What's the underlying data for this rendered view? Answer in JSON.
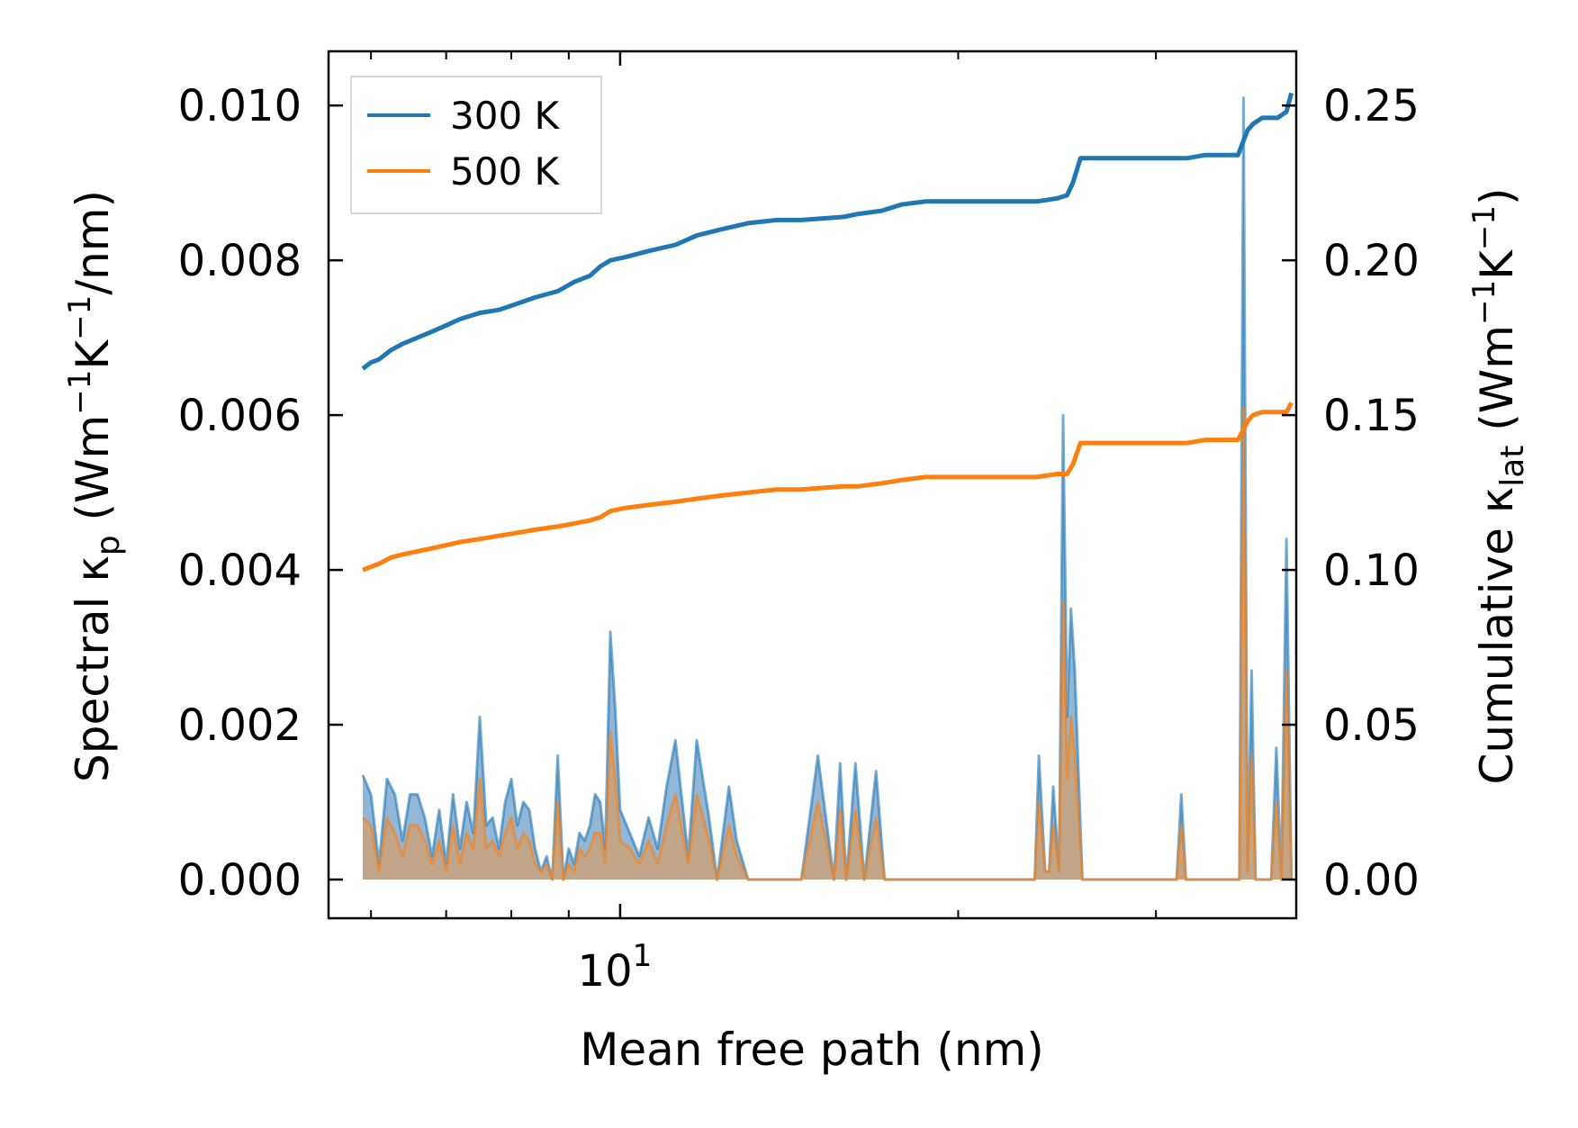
{
  "chart_data": {
    "type": "line",
    "xlabel": "Mean free path (nm)",
    "x_scale": "log",
    "xlim": [
      5.5,
      40
    ],
    "x_major_ticks": [
      {
        "value": 10,
        "base": "10",
        "exp": "1"
      }
    ],
    "x_minor_ticks": [
      6,
      7,
      8,
      9,
      20,
      30
    ],
    "y_left": {
      "label": {
        "pre": "Spectral κ",
        "sub": "p",
        "mid": " (Wm",
        "sup1": "−1",
        "mid2": "K",
        "sup2": "−1",
        "post": "/nm)"
      },
      "lim": [
        -0.0005,
        0.0107
      ],
      "ticks": [
        0.0,
        0.002,
        0.004,
        0.006,
        0.008,
        0.01
      ],
      "tick_labels": [
        "0.000",
        "0.002",
        "0.004",
        "0.006",
        "0.008",
        "0.010"
      ]
    },
    "y_right": {
      "label": {
        "pre": "Cumulative κ",
        "sub": "lat",
        "mid": " (Wm",
        "sup1": "−1",
        "mid2": "K",
        "sup2": "−1",
        "post": ")"
      },
      "lim": [
        -0.0125,
        0.2675
      ],
      "ticks": [
        0.0,
        0.05,
        0.1,
        0.15,
        0.2,
        0.25
      ],
      "tick_labels": [
        "0.00",
        "0.05",
        "0.10",
        "0.15",
        "0.20",
        "0.25"
      ]
    },
    "legend": {
      "position": "top-left"
    },
    "series": [
      {
        "name": "300 K",
        "color": "#1f77b4",
        "cumulative": {
          "x": [
            5.9,
            6.0,
            6.1,
            6.25,
            6.4,
            6.6,
            6.8,
            7.0,
            7.2,
            7.5,
            7.8,
            8.1,
            8.4,
            8.8,
            9.1,
            9.4,
            9.6,
            9.8,
            10.1,
            10.6,
            11.2,
            11.7,
            12.3,
            13.0,
            13.8,
            14.5,
            15.8,
            16.3,
            17.1,
            17.8,
            18.7,
            20.0,
            21.5,
            23.5,
            24.5,
            25.0,
            25.3,
            25.7,
            27.3,
            28.5,
            32.0,
            33.2,
            35.5,
            36.2,
            36.6,
            37.3,
            38.5,
            39.2,
            39.6
          ],
          "y": [
            0.165,
            0.167,
            0.168,
            0.171,
            0.173,
            0.175,
            0.177,
            0.179,
            0.181,
            0.183,
            0.184,
            0.186,
            0.188,
            0.19,
            0.193,
            0.195,
            0.198,
            0.2,
            0.201,
            0.203,
            0.205,
            0.208,
            0.21,
            0.212,
            0.213,
            0.213,
            0.214,
            0.215,
            0.216,
            0.218,
            0.219,
            0.219,
            0.219,
            0.219,
            0.22,
            0.221,
            0.225,
            0.233,
            0.233,
            0.233,
            0.233,
            0.234,
            0.234,
            0.242,
            0.244,
            0.246,
            0.246,
            0.248,
            0.254
          ]
        },
        "spectral": {
          "x": [
            5.9,
            6.0,
            6.1,
            6.2,
            6.3,
            6.4,
            6.5,
            6.6,
            6.7,
            6.8,
            6.9,
            7.0,
            7.1,
            7.2,
            7.3,
            7.4,
            7.5,
            7.6,
            7.7,
            7.8,
            7.9,
            8.0,
            8.1,
            8.2,
            8.3,
            8.4,
            8.5,
            8.6,
            8.7,
            8.8,
            8.9,
            9.0,
            9.1,
            9.2,
            9.3,
            9.4,
            9.5,
            9.6,
            9.7,
            9.8,
            9.9,
            10.0,
            10.2,
            10.4,
            10.6,
            10.8,
            11.0,
            11.2,
            11.5,
            11.7,
            12.0,
            12.2,
            12.5,
            12.7,
            13.0,
            13.2,
            13.5,
            13.8,
            14.0,
            14.5,
            15.0,
            15.5,
            15.7,
            15.9,
            16.2,
            16.5,
            16.9,
            17.2,
            17.6,
            18.0,
            18.5,
            19.0,
            19.5,
            20.0,
            20.5,
            21.0,
            21.5,
            22.0,
            22.5,
            23.0,
            23.4,
            23.6,
            23.9,
            24.1,
            24.3,
            24.6,
            24.8,
            25.0,
            25.2,
            25.4,
            25.8,
            26.1,
            26.5,
            27.5,
            28.5,
            29.5,
            30.5,
            31.3,
            31.6,
            31.9,
            33.0,
            34.5,
            35.6,
            35.9,
            36.2,
            36.5,
            36.8,
            37.2,
            37.6,
            38.0,
            38.4,
            38.8,
            39.2,
            39.6
          ],
          "y": [
            0.00135,
            0.0011,
            0.0002,
            0.0013,
            0.0011,
            0.0005,
            0.0011,
            0.0011,
            0.0008,
            0.0003,
            0.0009,
            0.0002,
            0.0011,
            0.0004,
            0.001,
            0.0006,
            0.0021,
            0.0007,
            0.0008,
            0.0004,
            0.001,
            0.0013,
            0.0007,
            0.001,
            0.0009,
            0.0004,
            0.0001,
            0.0003,
            0.0,
            0.0016,
            0.0,
            0.0004,
            0.0002,
            0.0006,
            0.0005,
            0.0007,
            0.0011,
            0.001,
            0.0004,
            0.0032,
            0.0022,
            0.0009,
            0.0006,
            0.0003,
            0.0008,
            0.0004,
            0.0012,
            0.0018,
            0.0003,
            0.0018,
            0.0008,
            0.0,
            0.0012,
            0.0005,
            0.0,
            0.0,
            0.0,
            0.0,
            0.0,
            0.0,
            0.0016,
            0.0,
            0.0015,
            0.0,
            0.0015,
            0.0,
            0.0014,
            0.0,
            0.0,
            0.0,
            0.0,
            0.0,
            0.0,
            0.0,
            0.0,
            0.0,
            0.0,
            0.0,
            0.0,
            0.0,
            0.0,
            0.0016,
            0.0001,
            0.0001,
            0.0012,
            0.0001,
            0.006,
            0.0021,
            0.0035,
            0.0027,
            0.0,
            0.0,
            0.0,
            0.0,
            0.0,
            0.0,
            0.0,
            0.0,
            0.0011,
            0.0,
            0.0,
            0.0,
            0.0,
            0.0101,
            0.0001,
            0.0027,
            0.0,
            0.0,
            0.0,
            0.0,
            0.0017,
            0.0,
            0.0044,
            0.0
          ],
          "fill_color": "#7fa9cf"
        }
      },
      {
        "name": "500 K",
        "color": "#ff7f0e",
        "cumulative": {
          "x": [
            5.9,
            6.0,
            6.1,
            6.25,
            6.4,
            6.6,
            6.8,
            7.0,
            7.2,
            7.5,
            7.8,
            8.1,
            8.4,
            8.8,
            9.1,
            9.4,
            9.6,
            9.8,
            10.1,
            10.6,
            11.2,
            11.7,
            12.3,
            13.0,
            13.8,
            14.5,
            15.8,
            16.3,
            17.1,
            17.8,
            18.7,
            20.0,
            21.5,
            23.5,
            24.5,
            25.0,
            25.3,
            25.7,
            27.3,
            28.5,
            32.0,
            33.2,
            35.5,
            36.2,
            36.6,
            37.3,
            38.5,
            39.2,
            39.6
          ],
          "y": [
            0.1,
            0.101,
            0.102,
            0.104,
            0.105,
            0.106,
            0.107,
            0.108,
            0.109,
            0.11,
            0.111,
            0.112,
            0.113,
            0.114,
            0.115,
            0.116,
            0.117,
            0.119,
            0.12,
            0.121,
            0.122,
            0.123,
            0.124,
            0.125,
            0.126,
            0.126,
            0.127,
            0.127,
            0.128,
            0.129,
            0.13,
            0.13,
            0.13,
            0.13,
            0.131,
            0.131,
            0.134,
            0.141,
            0.141,
            0.141,
            0.141,
            0.142,
            0.142,
            0.148,
            0.15,
            0.151,
            0.151,
            0.151,
            0.154
          ]
        },
        "spectral": {
          "x": [
            5.9,
            6.0,
            6.1,
            6.2,
            6.3,
            6.4,
            6.5,
            6.6,
            6.7,
            6.8,
            6.9,
            7.0,
            7.1,
            7.2,
            7.3,
            7.4,
            7.5,
            7.6,
            7.7,
            7.8,
            7.9,
            8.0,
            8.1,
            8.2,
            8.3,
            8.4,
            8.5,
            8.6,
            8.7,
            8.8,
            8.9,
            9.0,
            9.1,
            9.2,
            9.3,
            9.4,
            9.5,
            9.6,
            9.7,
            9.8,
            9.9,
            10.0,
            10.2,
            10.4,
            10.6,
            10.8,
            11.0,
            11.2,
            11.5,
            11.7,
            12.0,
            12.2,
            12.5,
            12.7,
            13.0,
            13.2,
            13.5,
            13.8,
            14.0,
            14.5,
            15.0,
            15.5,
            15.7,
            15.9,
            16.2,
            16.5,
            16.9,
            17.2,
            17.6,
            18.0,
            18.5,
            19.0,
            19.5,
            20.0,
            20.5,
            21.0,
            21.5,
            22.0,
            22.5,
            23.0,
            23.4,
            23.6,
            23.9,
            24.1,
            24.3,
            24.6,
            24.8,
            25.0,
            25.2,
            25.4,
            25.8,
            26.1,
            26.5,
            27.5,
            28.5,
            29.5,
            30.5,
            31.3,
            31.6,
            31.9,
            33.0,
            34.5,
            35.6,
            35.9,
            36.2,
            36.5,
            36.8,
            37.2,
            37.6,
            38.0,
            38.4,
            38.8,
            39.2,
            39.6
          ],
          "y": [
            0.0008,
            0.0007,
            0.0001,
            0.0008,
            0.0006,
            0.0003,
            0.0007,
            0.0007,
            0.0005,
            0.0002,
            0.0005,
            0.0001,
            0.0007,
            0.0002,
            0.0006,
            0.0004,
            0.0013,
            0.0004,
            0.0005,
            0.0003,
            0.0006,
            0.0008,
            0.0004,
            0.0006,
            0.0005,
            0.0002,
            0.0001,
            0.0002,
            0.0,
            0.001,
            0.0,
            0.0002,
            0.0001,
            0.0004,
            0.0003,
            0.0004,
            0.0006,
            0.0006,
            0.0002,
            0.0019,
            0.0013,
            0.0005,
            0.0004,
            0.0002,
            0.0005,
            0.0002,
            0.0007,
            0.0011,
            0.0002,
            0.0011,
            0.0005,
            0.0,
            0.0007,
            0.0003,
            0.0,
            0.0,
            0.0,
            0.0,
            0.0,
            0.0,
            0.001,
            0.0,
            0.0009,
            0.0,
            0.0009,
            0.0,
            0.0008,
            0.0,
            0.0,
            0.0,
            0.0,
            0.0,
            0.0,
            0.0,
            0.0,
            0.0,
            0.0,
            0.0,
            0.0,
            0.0,
            0.0,
            0.001,
            0.0001,
            0.0001,
            0.0007,
            0.0001,
            0.0036,
            0.0013,
            0.0021,
            0.0016,
            0.0,
            0.0,
            0.0,
            0.0,
            0.0,
            0.0,
            0.0,
            0.0,
            0.0007,
            0.0,
            0.0,
            0.0,
            0.0,
            0.0061,
            0.0001,
            0.0016,
            0.0,
            0.0,
            0.0,
            0.0,
            0.001,
            0.0,
            0.0027,
            0.0
          ],
          "fill_color": "#c9a27b"
        }
      }
    ]
  }
}
